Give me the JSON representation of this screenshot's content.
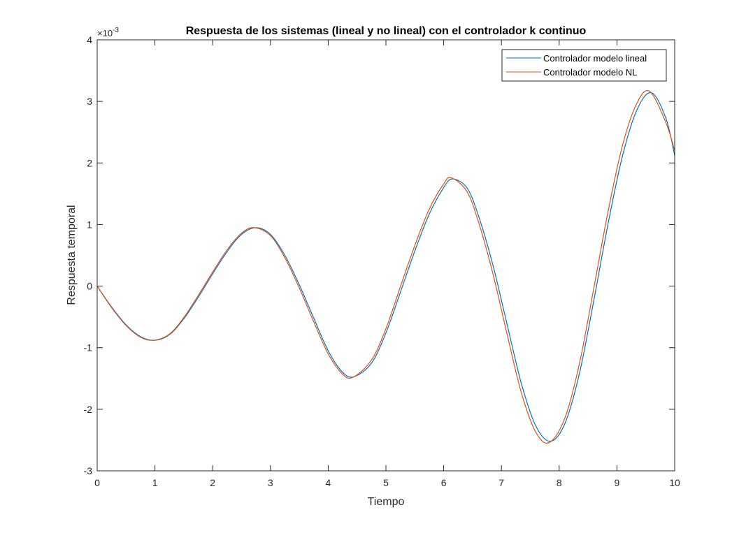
{
  "chart_data": {
    "type": "line",
    "title": "Respuesta de los sistemas (lineal y no lineal) con el controlador k continuo",
    "xlabel": "Tiempo",
    "ylabel": "Respuesta temporal",
    "xlim": [
      0,
      10
    ],
    "ylim": [
      -3,
      4
    ],
    "y_exponent_base": "×10",
    "y_exponent_power": "-3",
    "x_ticks": [
      0,
      1,
      2,
      3,
      4,
      5,
      6,
      7,
      8,
      9,
      10
    ],
    "y_ticks": [
      -3,
      -2,
      -1,
      0,
      1,
      2,
      3,
      4
    ],
    "grid": false,
    "legend_position": "top-right",
    "series": [
      {
        "name": "Controlador modelo lineal",
        "color": "#0072BD",
        "x": [
          0,
          0.25,
          0.5,
          0.75,
          1.0,
          1.25,
          1.5,
          1.75,
          2.0,
          2.25,
          2.5,
          2.75,
          3.0,
          3.25,
          3.5,
          3.75,
          4.0,
          4.25,
          4.45,
          4.75,
          5.0,
          5.25,
          5.5,
          5.75,
          6.0,
          6.15,
          6.4,
          6.6,
          6.85,
          7.1,
          7.35,
          7.6,
          7.85,
          8.1,
          8.35,
          8.6,
          8.85,
          9.1,
          9.35,
          9.6,
          9.85,
          10.0
        ],
        "y": [
          0,
          -0.34,
          -0.63,
          -0.82,
          -0.88,
          -0.79,
          -0.53,
          -0.18,
          0.2,
          0.56,
          0.84,
          0.95,
          0.84,
          0.5,
          0.02,
          -0.52,
          -1.05,
          -1.4,
          -1.47,
          -1.25,
          -0.76,
          -0.1,
          0.57,
          1.17,
          1.6,
          1.74,
          1.6,
          1.15,
          0.35,
          -0.63,
          -1.6,
          -2.28,
          -2.52,
          -2.23,
          -1.42,
          -0.23,
          1.03,
          2.13,
          2.87,
          3.14,
          2.72,
          2.12
        ]
      },
      {
        "name": "Controlador modelo NL",
        "color": "#D95319",
        "x": [
          0,
          0.25,
          0.5,
          0.75,
          0.98,
          1.25,
          1.5,
          1.75,
          2.0,
          2.25,
          2.5,
          2.72,
          3.0,
          3.25,
          3.5,
          3.75,
          4.0,
          4.25,
          4.43,
          4.75,
          5.0,
          5.25,
          5.5,
          5.75,
          6.0,
          6.13,
          6.4,
          6.6,
          6.85,
          7.1,
          7.35,
          7.6,
          7.83,
          8.1,
          8.35,
          8.6,
          8.85,
          9.1,
          9.35,
          9.57,
          9.85,
          10.0
        ],
        "y": [
          0,
          -0.35,
          -0.64,
          -0.83,
          -0.88,
          -0.78,
          -0.51,
          -0.15,
          0.23,
          0.59,
          0.86,
          0.95,
          0.82,
          0.46,
          -0.03,
          -0.58,
          -1.1,
          -1.43,
          -1.48,
          -1.2,
          -0.69,
          -0.01,
          0.66,
          1.25,
          1.66,
          1.76,
          1.54,
          1.05,
          0.21,
          -0.79,
          -1.75,
          -2.38,
          -2.54,
          -2.14,
          -1.26,
          -0.03,
          1.23,
          2.3,
          2.98,
          3.16,
          2.65,
          2.2
        ]
      }
    ]
  }
}
